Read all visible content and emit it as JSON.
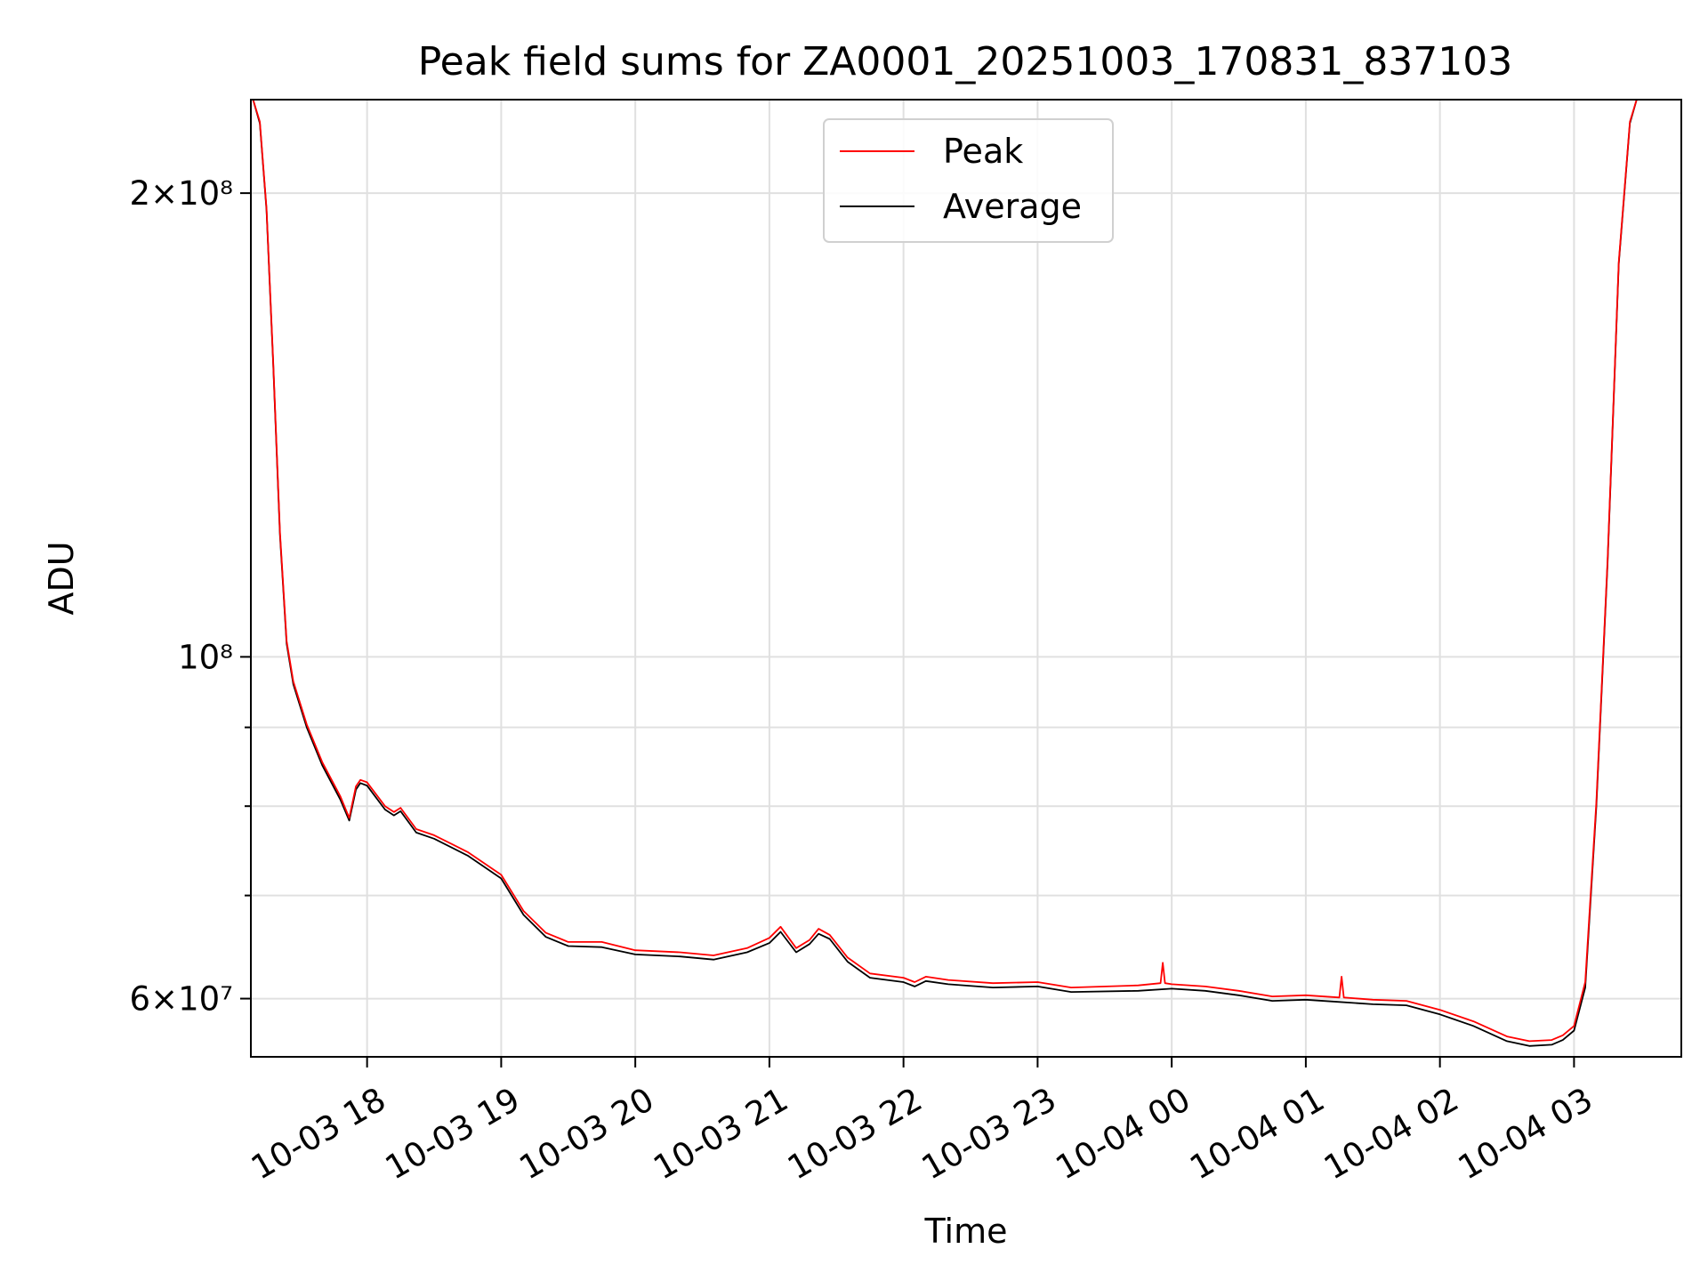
{
  "chart_data": {
    "type": "line",
    "title": "Peak field sums for ZA0001_20251003_170831_837103",
    "xlabel": "Time",
    "ylabel": "ADU",
    "y_scale": "log",
    "ylim": [
      55000000,
      230000000
    ],
    "xlim": [
      "2025-10-03 17:08",
      "2025-10-04 03:48"
    ],
    "grid": true,
    "legend": {
      "placement": "upper center",
      "entries": [
        "Peak",
        "Average"
      ]
    },
    "x_ticks": [
      {
        "label": "10-03 18",
        "value": "2025-10-03 18:00"
      },
      {
        "label": "10-03 19",
        "value": "2025-10-03 19:00"
      },
      {
        "label": "10-03 20",
        "value": "2025-10-03 20:00"
      },
      {
        "label": "10-03 21",
        "value": "2025-10-03 21:00"
      },
      {
        "label": "10-03 22",
        "value": "2025-10-03 22:00"
      },
      {
        "label": "10-03 23",
        "value": "2025-10-03 23:00"
      },
      {
        "label": "10-04 00",
        "value": "2025-10-04 00:00"
      },
      {
        "label": "10-04 01",
        "value": "2025-10-04 01:00"
      },
      {
        "label": "10-04 02",
        "value": "2025-10-04 02:00"
      },
      {
        "label": "10-04 03",
        "value": "2025-10-04 03:00"
      }
    ],
    "y_ticks": [
      {
        "label": "2×10⁸",
        "value": 200000000
      },
      {
        "label": "10⁸",
        "value": 100000000
      },
      {
        "label": "6×10⁷",
        "value": 60000000
      }
    ],
    "y_minor_ticks": [
      70000000,
      80000000,
      90000000
    ],
    "series": [
      {
        "name": "Average",
        "color": "#000000",
        "points": [
          [
            "2025-10-03 17:09",
            230000000
          ],
          [
            "2025-10-03 17:12",
            222000000
          ],
          [
            "2025-10-03 17:15",
            195000000
          ],
          [
            "2025-10-03 17:18",
            155000000
          ],
          [
            "2025-10-03 17:21",
            120000000
          ],
          [
            "2025-10-03 17:24",
            102000000
          ],
          [
            "2025-10-03 17:27",
            96000000
          ],
          [
            "2025-10-03 17:33",
            90000000
          ],
          [
            "2025-10-03 17:40",
            85000000
          ],
          [
            "2025-10-03 17:48",
            80800000
          ],
          [
            "2025-10-03 17:52",
            78300000
          ],
          [
            "2025-10-03 17:55",
            82000000
          ],
          [
            "2025-10-03 17:57",
            82800000
          ],
          [
            "2025-10-03 18:00",
            82500000
          ],
          [
            "2025-10-03 18:08",
            79600000
          ],
          [
            "2025-10-03 18:12",
            78900000
          ],
          [
            "2025-10-03 18:15",
            79400000
          ],
          [
            "2025-10-03 18:22",
            76900000
          ],
          [
            "2025-10-03 18:30",
            76200000
          ],
          [
            "2025-10-03 18:45",
            74300000
          ],
          [
            "2025-10-03 19:00",
            71800000
          ],
          [
            "2025-10-03 19:10",
            68000000
          ],
          [
            "2025-10-03 19:20",
            65800000
          ],
          [
            "2025-10-03 19:30",
            64900000
          ],
          [
            "2025-10-03 19:45",
            64800000
          ],
          [
            "2025-10-03 20:00",
            64100000
          ],
          [
            "2025-10-03 20:20",
            63900000
          ],
          [
            "2025-10-03 20:35",
            63600000
          ],
          [
            "2025-10-03 20:50",
            64300000
          ],
          [
            "2025-10-03 21:00",
            65200000
          ],
          [
            "2025-10-03 21:05",
            66300000
          ],
          [
            "2025-10-03 21:12",
            64300000
          ],
          [
            "2025-10-03 21:18",
            65100000
          ],
          [
            "2025-10-03 21:22",
            66100000
          ],
          [
            "2025-10-03 21:27",
            65600000
          ],
          [
            "2025-10-03 21:35",
            63400000
          ],
          [
            "2025-10-03 21:45",
            61900000
          ],
          [
            "2025-10-03 22:00",
            61500000
          ],
          [
            "2025-10-03 22:05",
            61100000
          ],
          [
            "2025-10-03 22:10",
            61600000
          ],
          [
            "2025-10-03 22:20",
            61300000
          ],
          [
            "2025-10-03 22:40",
            61000000
          ],
          [
            "2025-10-03 23:00",
            61100000
          ],
          [
            "2025-10-03 23:15",
            60600000
          ],
          [
            "2025-10-03 23:45",
            60700000
          ],
          [
            "2025-10-04 00:00",
            60900000
          ],
          [
            "2025-10-04 00:15",
            60700000
          ],
          [
            "2025-10-04 00:30",
            60300000
          ],
          [
            "2025-10-04 00:45",
            59800000
          ],
          [
            "2025-10-04 01:00",
            59900000
          ],
          [
            "2025-10-04 01:15",
            59700000
          ],
          [
            "2025-10-04 01:30",
            59500000
          ],
          [
            "2025-10-04 01:45",
            59400000
          ],
          [
            "2025-10-04 02:00",
            58600000
          ],
          [
            "2025-10-04 02:15",
            57600000
          ],
          [
            "2025-10-04 02:30",
            56300000
          ],
          [
            "2025-10-04 02:40",
            55900000
          ],
          [
            "2025-10-04 02:50",
            56000000
          ],
          [
            "2025-10-04 02:55",
            56400000
          ],
          [
            "2025-10-04 03:00",
            57200000
          ],
          [
            "2025-10-04 03:05",
            61000000
          ],
          [
            "2025-10-04 03:10",
            80000000
          ],
          [
            "2025-10-04 03:15",
            115000000
          ],
          [
            "2025-10-04 03:20",
            180000000
          ],
          [
            "2025-10-04 03:25",
            222000000
          ],
          [
            "2025-10-04 03:28",
            230000000
          ]
        ]
      },
      {
        "name": "Peak",
        "color": "#ff0000",
        "points": [
          [
            "2025-10-03 17:09",
            230000000
          ],
          [
            "2025-10-03 17:12",
            222500000
          ],
          [
            "2025-10-03 17:15",
            195500000
          ],
          [
            "2025-10-03 17:18",
            155500000
          ],
          [
            "2025-10-03 17:21",
            120500000
          ],
          [
            "2025-10-03 17:24",
            102400000
          ],
          [
            "2025-10-03 17:27",
            96400000
          ],
          [
            "2025-10-03 17:33",
            90400000
          ],
          [
            "2025-10-03 17:40",
            85400000
          ],
          [
            "2025-10-03 17:48",
            81200000
          ],
          [
            "2025-10-03 17:52",
            78600000
          ],
          [
            "2025-10-03 17:55",
            82400000
          ],
          [
            "2025-10-03 17:57",
            83200000
          ],
          [
            "2025-10-03 18:00",
            82900000
          ],
          [
            "2025-10-03 18:08",
            80000000
          ],
          [
            "2025-10-03 18:12",
            79300000
          ],
          [
            "2025-10-03 18:15",
            79800000
          ],
          [
            "2025-10-03 18:22",
            77300000
          ],
          [
            "2025-10-03 18:30",
            76600000
          ],
          [
            "2025-10-03 18:45",
            74700000
          ],
          [
            "2025-10-03 19:00",
            72200000
          ],
          [
            "2025-10-03 19:10",
            68400000
          ],
          [
            "2025-10-03 19:20",
            66200000
          ],
          [
            "2025-10-03 19:30",
            65300000
          ],
          [
            "2025-10-03 19:45",
            65300000
          ],
          [
            "2025-10-03 20:00",
            64500000
          ],
          [
            "2025-10-03 20:20",
            64300000
          ],
          [
            "2025-10-03 20:35",
            64000000
          ],
          [
            "2025-10-03 20:50",
            64700000
          ],
          [
            "2025-10-03 21:00",
            65700000
          ],
          [
            "2025-10-03 21:05",
            66800000
          ],
          [
            "2025-10-03 21:12",
            64700000
          ],
          [
            "2025-10-03 21:18",
            65500000
          ],
          [
            "2025-10-03 21:22",
            66600000
          ],
          [
            "2025-10-03 21:27",
            66000000
          ],
          [
            "2025-10-03 21:35",
            63800000
          ],
          [
            "2025-10-03 21:45",
            62300000
          ],
          [
            "2025-10-03 22:00",
            61900000
          ],
          [
            "2025-10-03 22:05",
            61500000
          ],
          [
            "2025-10-03 22:10",
            62000000
          ],
          [
            "2025-10-03 22:20",
            61700000
          ],
          [
            "2025-10-03 22:40",
            61400000
          ],
          [
            "2025-10-03 23:00",
            61500000
          ],
          [
            "2025-10-03 23:15",
            61000000
          ],
          [
            "2025-10-03 23:45",
            61200000
          ],
          [
            "2025-10-03 23:55",
            61400000
          ],
          [
            "2025-10-03 23:56",
            63300000
          ],
          [
            "2025-10-03 23:57",
            61400000
          ],
          [
            "2025-10-04 00:00",
            61300000
          ],
          [
            "2025-10-04 00:15",
            61100000
          ],
          [
            "2025-10-04 00:30",
            60700000
          ],
          [
            "2025-10-04 00:45",
            60200000
          ],
          [
            "2025-10-04 01:00",
            60300000
          ],
          [
            "2025-10-04 01:15",
            60100000
          ],
          [
            "2025-10-04 01:16",
            62000000
          ],
          [
            "2025-10-04 01:17",
            60100000
          ],
          [
            "2025-10-04 01:30",
            59900000
          ],
          [
            "2025-10-04 01:45",
            59800000
          ],
          [
            "2025-10-04 02:00",
            59000000
          ],
          [
            "2025-10-04 02:15",
            58000000
          ],
          [
            "2025-10-04 02:30",
            56700000
          ],
          [
            "2025-10-04 02:40",
            56300000
          ],
          [
            "2025-10-04 02:50",
            56400000
          ],
          [
            "2025-10-04 02:55",
            56800000
          ],
          [
            "2025-10-04 03:00",
            57600000
          ],
          [
            "2025-10-04 03:05",
            61500000
          ],
          [
            "2025-10-04 03:10",
            80500000
          ],
          [
            "2025-10-04 03:15",
            115500000
          ],
          [
            "2025-10-04 03:20",
            180500000
          ],
          [
            "2025-10-04 03:25",
            222500000
          ],
          [
            "2025-10-04 03:28",
            230000000
          ]
        ]
      }
    ]
  }
}
